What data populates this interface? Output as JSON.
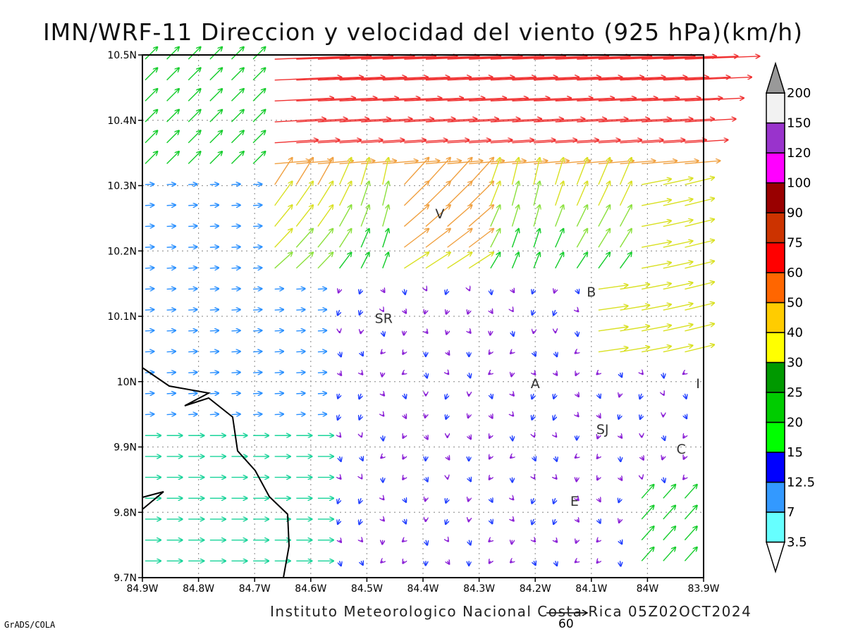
{
  "title": "IMN/WRF-11 Direccion y velocidad del viento (925 hPa)(km/h)",
  "footer": "Instituto Meteorologico Nacional Costa Rica 05Z02OCT2024",
  "credit": "GrADS/COLA",
  "reference_vector_label": "60",
  "map": {
    "lon_range": [
      -84.9,
      -83.9
    ],
    "lat_range": [
      9.7,
      10.5
    ],
    "x_ticks": [
      "84.9W",
      "84.8W",
      "84.7W",
      "84.6W",
      "84.5W",
      "84.4W",
      "84.3W",
      "84.2W",
      "84.1W",
      "84W",
      "83.9W"
    ],
    "y_ticks": [
      "9.7N",
      "9.8N",
      "9.9N",
      "10N",
      "10.1N",
      "10.2N",
      "10.3N",
      "10.4N",
      "10.5N"
    ],
    "grid": true,
    "places": [
      {
        "label": "V",
        "lon": -84.37,
        "lat": 10.25
      },
      {
        "label": "SR",
        "lon": -84.47,
        "lat": 10.09
      },
      {
        "label": "B",
        "lon": -84.1,
        "lat": 10.13
      },
      {
        "label": "A",
        "lon": -84.2,
        "lat": 9.99
      },
      {
        "label": "I",
        "lon": -83.91,
        "lat": 9.99
      },
      {
        "label": "SJ",
        "lon": -84.08,
        "lat": 9.92
      },
      {
        "label": "C",
        "lon": -83.94,
        "lat": 9.89
      },
      {
        "label": "E",
        "lon": -84.13,
        "lat": 9.81
      }
    ]
  },
  "colorbar": {
    "levels": [
      "3.5",
      "7",
      "12.5",
      "15",
      "20",
      "25",
      "30",
      "40",
      "50",
      "60",
      "75",
      "90",
      "100",
      "120",
      "150",
      "200"
    ],
    "colors": [
      "#ffffff",
      "#66ffff",
      "#3399ff",
      "#0000ff",
      "#00ff00",
      "#00cc00",
      "#009900",
      "#ffff00",
      "#ffcc00",
      "#ff6600",
      "#ff0000",
      "#cc3300",
      "#990000",
      "#ff00ff",
      "#9933cc",
      "#f2f2f2",
      "#999999"
    ]
  }
}
